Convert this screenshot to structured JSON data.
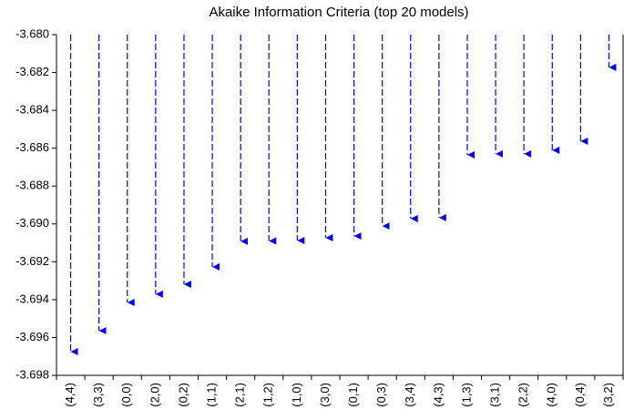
{
  "chart_data": {
    "type": "stem",
    "title": "Akaike Information Criteria (top 20 models)",
    "categories": [
      "(4,4)",
      "(3,3)",
      "(0,0)",
      "(2,0)",
      "(0,2)",
      "(1,1)",
      "(2,1)",
      "(1,2)",
      "(1,0)",
      "(3,0)",
      "(0,1)",
      "(0,3)",
      "(3,4)",
      "(4,3)",
      "(1,3)",
      "(3,1)",
      "(2,2)",
      "(4,0)",
      "(0,4)",
      "(3,2)"
    ],
    "values": [
      -3.69675,
      -3.69564,
      -3.69415,
      -3.69371,
      -3.69319,
      -3.69227,
      -3.69092,
      -3.6909,
      -3.69088,
      -3.69073,
      -3.69064,
      -3.69011,
      -3.68972,
      -3.68967,
      -3.68635,
      -3.6863,
      -3.6863,
      -3.68611,
      -3.68563,
      -3.68173
    ],
    "color": "#0000ff",
    "ylim": [
      -3.698,
      -3.68
    ],
    "yticks": [
      {
        "value": -3.698,
        "label": "-3.698"
      },
      {
        "value": -3.696,
        "label": "-3.696"
      },
      {
        "value": -3.694,
        "label": "-3.694"
      },
      {
        "value": -3.692,
        "label": "-3.692"
      },
      {
        "value": -3.69,
        "label": "-3.690"
      },
      {
        "value": -3.688,
        "label": "-3.688"
      },
      {
        "value": -3.686,
        "label": "-3.686"
      },
      {
        "value": -3.684,
        "label": "-3.684"
      },
      {
        "value": -3.682,
        "label": "-3.682"
      },
      {
        "value": -3.68,
        "label": "-3.680"
      }
    ]
  }
}
